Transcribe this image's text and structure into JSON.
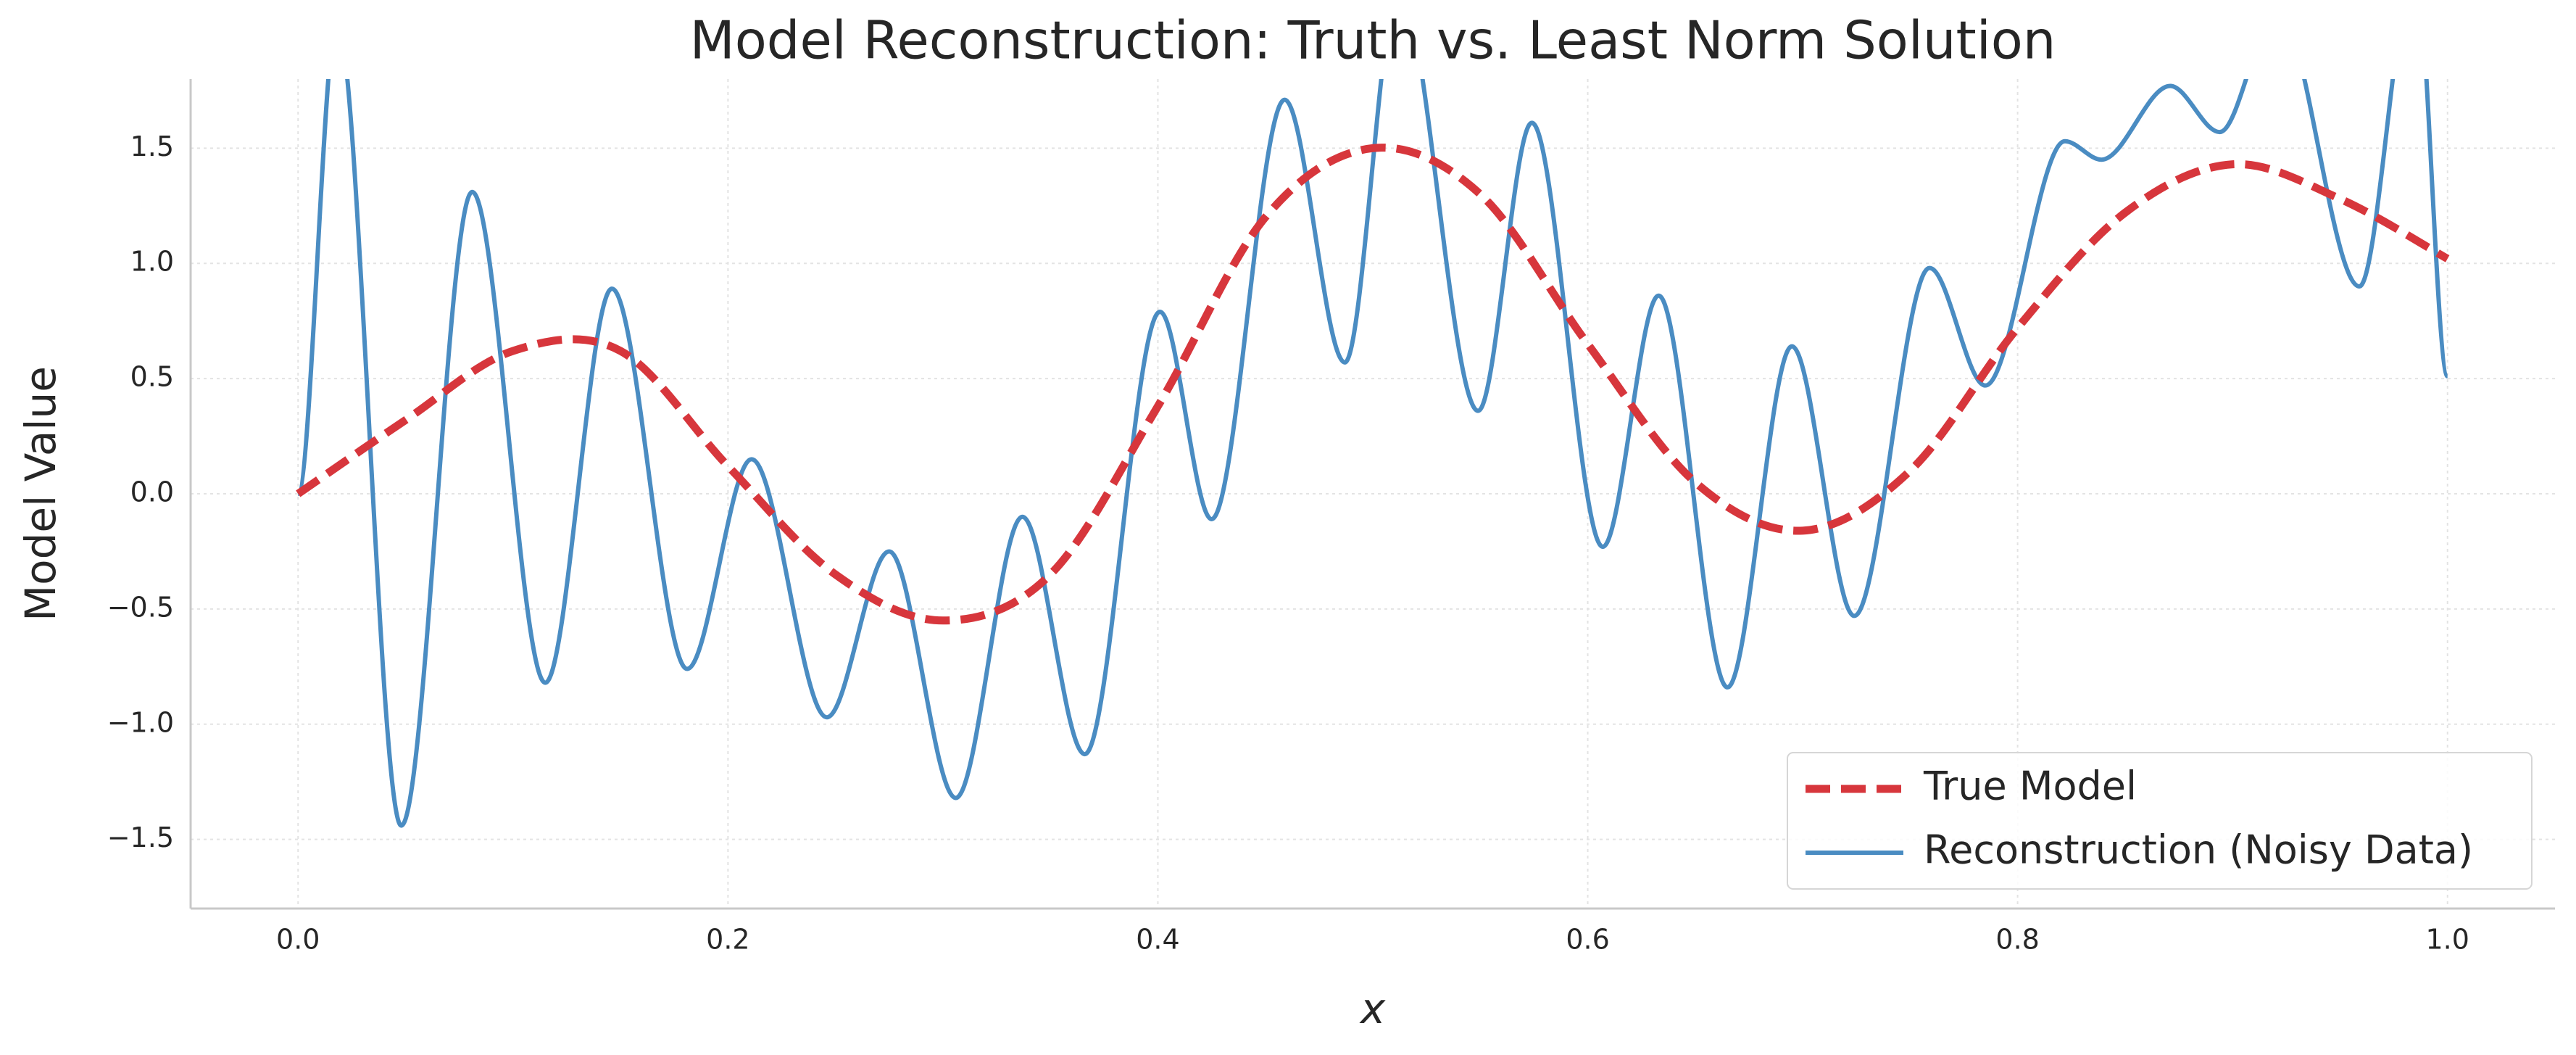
{
  "chart_data": {
    "type": "line",
    "title": "Model Reconstruction: Truth vs. Least Norm Solution",
    "xlabel": "x",
    "ylabel": "Model Value",
    "xlim": [
      -0.05,
      1.05
    ],
    "ylim": [
      -1.8,
      1.8
    ],
    "xticks": [
      {
        "value": 0,
        "label": "0.0"
      },
      {
        "value": 0.2,
        "label": "0.2"
      },
      {
        "value": 0.4,
        "label": "0.4"
      },
      {
        "value": 0.6,
        "label": "0.6"
      },
      {
        "value": 0.8,
        "label": "0.8"
      },
      {
        "value": 1,
        "label": "1.0"
      }
    ],
    "yticks": [
      {
        "value": -1.5,
        "label": "−1.5"
      },
      {
        "value": -1,
        "label": "−1.0"
      },
      {
        "value": -0.5,
        "label": "−0.5"
      },
      {
        "value": 0,
        "label": "0.0"
      },
      {
        "value": 0.5,
        "label": "0.5"
      },
      {
        "value": 1,
        "label": "1.0"
      },
      {
        "value": 1.5,
        "label": "1.5"
      }
    ],
    "grid": true,
    "legend": "lower right",
    "series": [
      {
        "name": "True Model",
        "color": "#d7363c",
        "dashed": true,
        "x": [
          0,
          0.05,
          0.1,
          0.15,
          0.2,
          0.25,
          0.3,
          0.35,
          0.4,
          0.45,
          0.5,
          0.55,
          0.6,
          0.65,
          0.7,
          0.75,
          0.8,
          0.85,
          0.9,
          0.95,
          1.0
        ],
        "values": [
          0,
          0.32,
          0.62,
          0.62,
          0.12,
          -0.35,
          -0.55,
          -0.35,
          0.38,
          1.2,
          1.5,
          1.3,
          0.65,
          0.05,
          -0.16,
          0.1,
          0.72,
          1.22,
          1.43,
          1.28,
          1.02
        ]
      },
      {
        "name": "Reconstruction (Noisy Data)",
        "color": "#4a8cc2",
        "dashed": false,
        "x": [
          0,
          0.018,
          0.048,
          0.081,
          0.115,
          0.146,
          0.181,
          0.211,
          0.246,
          0.275,
          0.306,
          0.337,
          0.366,
          0.401,
          0.425,
          0.459,
          0.487,
          0.512,
          0.549,
          0.574,
          0.607,
          0.633,
          0.665,
          0.695,
          0.724,
          0.759,
          0.785,
          0.822,
          0.839,
          0.871,
          0.894,
          0.921,
          0.959,
          0.985,
          1.0
        ],
        "values": [
          0,
          2.05,
          -1.44,
          1.31,
          -0.82,
          0.89,
          -0.76,
          0.15,
          -0.97,
          -0.25,
          -1.32,
          -0.1,
          -1.13,
          0.79,
          -0.11,
          1.71,
          0.57,
          2.2,
          0.36,
          1.61,
          -0.23,
          0.86,
          -0.84,
          0.64,
          -0.53,
          0.98,
          0.47,
          1.53,
          1.45,
          1.77,
          1.57,
          2.1,
          0.9,
          2.3,
          0.51
        ]
      }
    ]
  }
}
